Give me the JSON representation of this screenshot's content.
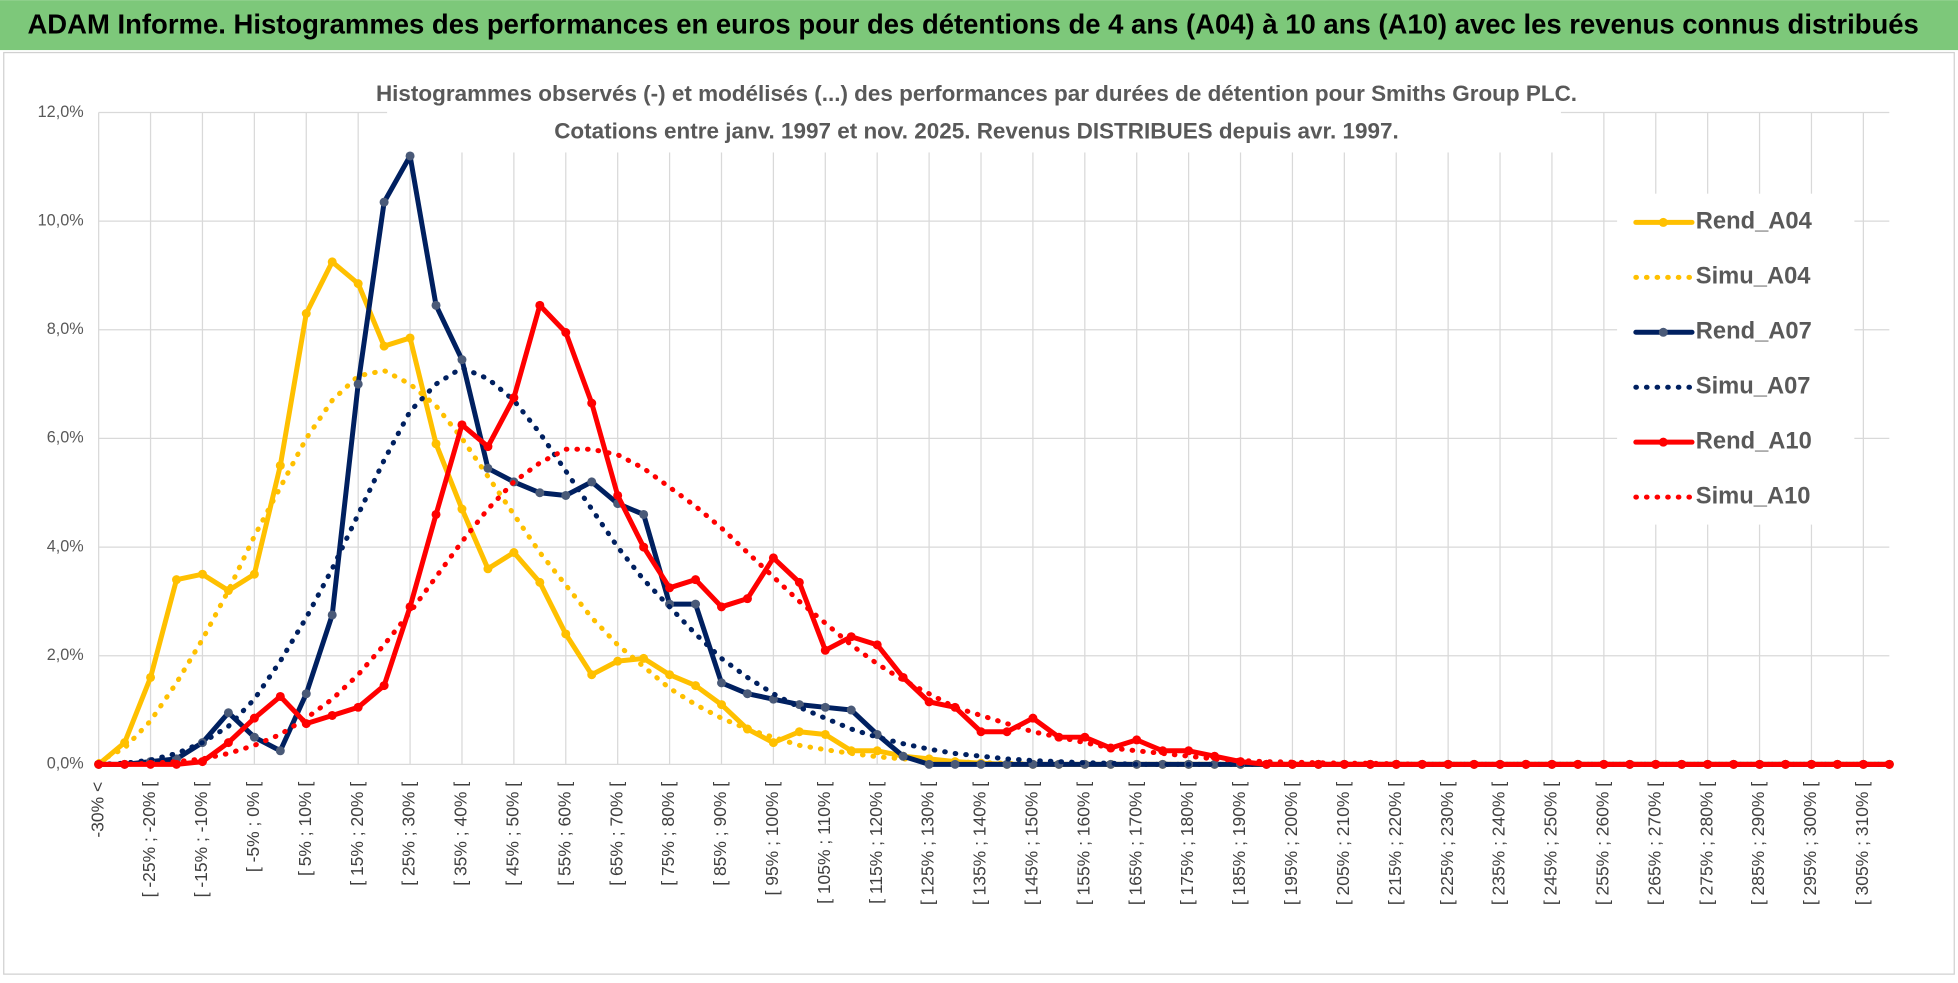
{
  "chart_data": {
    "type": "line",
    "header": "ADAM Informe. Histogrammes des performances en euros pour des détentions de 4 ans (A04) à 10 ans (A10) avec les revenus connus distribués",
    "title": "Histogrammes observés (-) et modélisés (...) des performances par durées de détention pour Smiths Group PLC.",
    "subtitle": "Cotations entre janv. 1997 et nov. 2025. Revenus DISTRIBUES depuis avr. 1997.",
    "categories": [
      "-30% <",
      null,
      "[ -25% ; -20% [",
      null,
      "[ -15% ; -10% [",
      null,
      "[ -5% ; 0% [",
      null,
      "[ 5% ; 10% [",
      null,
      "[ 15% ; 20% [",
      null,
      "[ 25% ; 30% [",
      null,
      "[ 35% ; 40% [",
      null,
      "[ 45% ; 50% [",
      null,
      "[ 55% ; 60% [",
      null,
      "[ 65% ; 70% [",
      null,
      "[ 75% ; 80% [",
      null,
      "[ 85% ; 90% [",
      null,
      "[ 95% ; 100% [",
      null,
      "[ 105% ; 110% [",
      null,
      "[ 115% ; 120% [",
      null,
      "[ 125% ; 130% [",
      null,
      "[ 135% ; 140% [",
      null,
      "[ 145% ; 150% [",
      null,
      "[ 155% ; 160% [",
      null,
      "[ 165% ; 170% [",
      null,
      "[ 175% ; 180% [",
      null,
      "[ 185% ; 190% [",
      null,
      "[ 195% ; 200% [",
      null,
      "[ 205% ; 210% [",
      null,
      "[ 215% ; 220% [",
      null,
      "[ 225% ; 230% [",
      null,
      "[ 235% ; 240% [",
      null,
      "[ 245% ; 250% [",
      null,
      "[ 255% ; 260% [",
      null,
      "[ 265% ; 270% [",
      null,
      "[ 275% ; 280% [",
      null,
      "[ 285% ; 290% [",
      null,
      "[ 295% ; 300% [",
      null,
      "[ 305% ; 310% [",
      null
    ],
    "series": [
      {
        "name": "Rend_A04",
        "color": "#FFC000",
        "marker_color": "#FFC000",
        "dashed": false,
        "values": [
          0,
          0.4,
          1.6,
          3.4,
          3.5,
          3.2,
          3.5,
          5.5,
          8.3,
          9.25,
          8.85,
          7.7,
          7.85,
          5.9,
          4.7,
          3.6,
          3.9,
          3.35,
          2.4,
          1.65,
          1.9,
          1.95,
          1.65,
          1.45,
          1.1,
          0.65,
          0.4,
          0.6,
          0.55,
          0.25,
          0.25,
          0.15,
          0.1,
          0.05,
          0.02,
          0,
          0,
          0,
          0,
          0,
          0,
          0,
          0,
          0,
          0,
          0,
          0,
          0,
          0,
          0,
          0,
          0,
          0,
          0,
          0,
          0,
          0,
          0,
          0,
          0,
          0,
          0,
          0,
          0,
          0,
          0,
          0,
          0,
          0,
          0
        ]
      },
      {
        "name": "Simu_A04",
        "color": "#FFC000",
        "dashed": true,
        "values": [
          0.05,
          0.3,
          0.8,
          1.5,
          2.3,
          3.2,
          4.2,
          5.1,
          6.0,
          6.7,
          7.15,
          7.25,
          7.0,
          6.6,
          6.0,
          5.3,
          4.6,
          3.9,
          3.3,
          2.7,
          2.2,
          1.8,
          1.4,
          1.1,
          0.85,
          0.65,
          0.5,
          0.35,
          0.27,
          0.2,
          0.14,
          0.1,
          0.07,
          0.05,
          0.03,
          0.02,
          0,
          0,
          0,
          0,
          0,
          0,
          0,
          0,
          0,
          0,
          0,
          0,
          0,
          0,
          0,
          0,
          0,
          0,
          0,
          0,
          0,
          0,
          0,
          0,
          0,
          0,
          0,
          0,
          0,
          0,
          0,
          0,
          0,
          0
        ]
      },
      {
        "name": "Rend_A07",
        "color": "#002060",
        "marker_color": "#4A5A78",
        "dashed": false,
        "values": [
          0,
          0,
          0.05,
          0.1,
          0.4,
          0.95,
          0.5,
          0.25,
          1.3,
          2.75,
          7.0,
          10.35,
          11.2,
          8.45,
          7.45,
          5.45,
          5.2,
          5.0,
          4.95,
          5.2,
          4.8,
          4.6,
          2.95,
          2.95,
          1.5,
          1.3,
          1.2,
          1.1,
          1.05,
          1.0,
          0.55,
          0.15,
          0,
          0,
          0,
          0,
          0,
          0,
          0,
          0,
          0,
          0,
          0,
          0,
          0,
          0,
          0,
          0,
          0,
          0,
          0,
          0,
          0,
          0,
          0,
          0,
          0,
          0,
          0,
          0,
          0,
          0,
          0,
          0,
          0,
          0,
          0,
          0,
          0,
          0
        ]
      },
      {
        "name": "Simu_A07",
        "color": "#002060",
        "dashed": true,
        "values": [
          0,
          0.02,
          0.08,
          0.2,
          0.4,
          0.7,
          1.2,
          1.9,
          2.7,
          3.6,
          4.6,
          5.6,
          6.5,
          7.0,
          7.3,
          7.1,
          6.7,
          6.1,
          5.4,
          4.7,
          4.0,
          3.4,
          2.9,
          2.4,
          1.95,
          1.6,
          1.3,
          1.05,
          0.85,
          0.65,
          0.5,
          0.38,
          0.28,
          0.2,
          0.15,
          0.1,
          0.07,
          0.05,
          0.03,
          0.02,
          0,
          0,
          0,
          0,
          0,
          0,
          0,
          0,
          0,
          0,
          0,
          0,
          0,
          0,
          0,
          0,
          0,
          0,
          0,
          0,
          0,
          0,
          0,
          0,
          0,
          0,
          0,
          0,
          0,
          0
        ]
      },
      {
        "name": "Rend_A10",
        "color": "#FF0000",
        "marker_color": "#FF0000",
        "dashed": false,
        "values": [
          0,
          0,
          0,
          0,
          0.05,
          0.4,
          0.85,
          1.25,
          0.75,
          0.9,
          1.05,
          1.45,
          2.9,
          4.6,
          6.25,
          5.85,
          6.75,
          8.45,
          7.95,
          6.65,
          4.95,
          4.0,
          3.25,
          3.4,
          2.9,
          3.05,
          3.8,
          3.35,
          2.1,
          2.35,
          2.2,
          1.6,
          1.15,
          1.05,
          0.6,
          0.6,
          0.85,
          0.5,
          0.5,
          0.3,
          0.45,
          0.25,
          0.25,
          0.15,
          0.05,
          0,
          0,
          0,
          0,
          0,
          0,
          0,
          0,
          0,
          0,
          0,
          0,
          0,
          0,
          0,
          0,
          0,
          0,
          0,
          0,
          0,
          0,
          0,
          0,
          0
        ]
      },
      {
        "name": "Simu_A10",
        "color": "#FF0000",
        "dashed": true,
        "values": [
          0,
          0,
          0.02,
          0.05,
          0.1,
          0.2,
          0.35,
          0.55,
          0.85,
          1.2,
          1.65,
          2.2,
          2.8,
          3.45,
          4.1,
          4.7,
          5.2,
          5.55,
          5.8,
          5.8,
          5.7,
          5.45,
          5.1,
          4.75,
          4.35,
          3.9,
          3.45,
          3.0,
          2.6,
          2.2,
          1.85,
          1.55,
          1.3,
          1.05,
          0.9,
          0.75,
          0.6,
          0.5,
          0.4,
          0.3,
          0.25,
          0.2,
          0.15,
          0.1,
          0.07,
          0.05,
          0.04,
          0.03,
          0.02,
          0.02,
          0.01,
          0,
          0,
          0,
          0,
          0,
          0,
          0,
          0,
          0,
          0,
          0,
          0,
          0,
          0,
          0,
          0,
          0,
          0,
          0
        ]
      }
    ],
    "ylim": [
      0,
      12
    ],
    "yticks": [
      {
        "value": 0,
        "label": "0,0%"
      },
      {
        "value": 2,
        "label": "2,0%"
      },
      {
        "value": 4,
        "label": "4,0%"
      },
      {
        "value": 6,
        "label": "6,0%"
      },
      {
        "value": 8,
        "label": "8,0%"
      },
      {
        "value": 10,
        "label": "10,0%"
      },
      {
        "value": 12,
        "label": "12,0%"
      }
    ],
    "grid": true,
    "legend": "right"
  }
}
